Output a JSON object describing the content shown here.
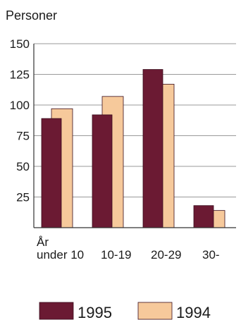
{
  "chart_data": {
    "type": "bar",
    "ylabel": "Personer",
    "x_axis_title": "År",
    "categories": [
      "under 10",
      "10-19",
      "20-29",
      "30-"
    ],
    "series": [
      {
        "name": "1995",
        "color": "#6b1a33",
        "values": [
          89,
          92,
          129,
          18
        ]
      },
      {
        "name": "1994",
        "color": "#f6c99b",
        "values": [
          97,
          107,
          117,
          14
        ]
      }
    ],
    "ylim": [
      0,
      150
    ],
    "yticks": [
      25,
      50,
      75,
      100,
      125,
      150
    ],
    "grid": true,
    "legend_position": "bottom"
  }
}
